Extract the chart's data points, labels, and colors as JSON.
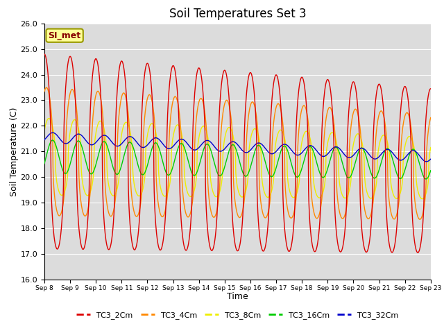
{
  "title": "Soil Temperatures Set 3",
  "xlabel": "Time",
  "ylabel": "Soil Temperature (C)",
  "ylim": [
    16.0,
    26.0
  ],
  "yticks": [
    16.0,
    17.0,
    18.0,
    19.0,
    20.0,
    21.0,
    22.0,
    23.0,
    24.0,
    25.0,
    26.0
  ],
  "days": 15,
  "xtick_labels": [
    "Sep 8",
    "Sep 9",
    "Sep 10",
    "Sep 11",
    "Sep 12",
    "Sep 13",
    "Sep 14",
    "Sep 15",
    "Sep 16",
    "Sep 17",
    "Sep 18",
    "Sep 19",
    "Sep 20",
    "Sep 21",
    "Sep 22",
    "Sep 23"
  ],
  "series_colors": {
    "TC3_2Cm": "#dd0000",
    "TC3_4Cm": "#ff8800",
    "TC3_8Cm": "#eeee00",
    "TC3_16Cm": "#00cc00",
    "TC3_32Cm": "#0000cc"
  },
  "series_labels": [
    "TC3_2Cm",
    "TC3_4Cm",
    "TC3_8Cm",
    "TC3_16Cm",
    "TC3_32Cm"
  ],
  "bg_color": "#dcdcdc",
  "fig_bg_color": "#ffffff",
  "grid_color": "#ffffff",
  "annotation_text": "SI_met",
  "annotation_bg": "#ffff99",
  "annotation_border": "#999900",
  "n_points": 1440
}
